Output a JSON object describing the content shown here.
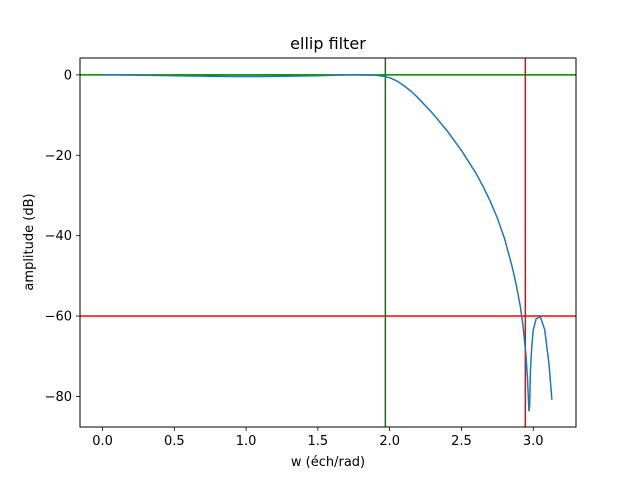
{
  "chart_data": {
    "type": "line",
    "title": "ellip filter",
    "xlabel": "w (éch/rad)",
    "ylabel": "amplitude (dB)",
    "xlim": [
      -0.157,
      3.298
    ],
    "ylim": [
      -87.6,
      4.2
    ],
    "xticks": [
      0.0,
      0.5,
      1.0,
      1.5,
      2.0,
      2.5,
      3.0
    ],
    "xtick_labels": [
      "0.0",
      "0.5",
      "1.0",
      "1.5",
      "2.0",
      "2.5",
      "3.0"
    ],
    "yticks": [
      0,
      -20,
      -40,
      -60,
      -80
    ],
    "ytick_labels": [
      "0",
      "−20",
      "−40",
      "−60",
      "−80"
    ],
    "grid": false,
    "series": [
      {
        "color": "#1f77b4",
        "x": [
          0.0,
          0.1,
          0.3,
          0.5,
          0.7,
          0.9,
          1.1,
          1.3,
          1.5,
          1.7,
          1.8,
          1.9,
          1.95,
          2.0,
          2.05,
          2.1,
          2.15,
          2.2,
          2.3,
          2.4,
          2.5,
          2.6,
          2.65,
          2.7,
          2.75,
          2.8,
          2.85,
          2.88,
          2.91,
          2.93,
          2.95,
          2.96,
          2.97,
          2.975,
          2.98,
          2.99,
          3.0,
          3.02,
          3.05,
          3.08,
          3.11,
          3.13
        ],
        "y": [
          0.0,
          0.0,
          -0.1,
          -0.2,
          -0.3,
          -0.4,
          -0.4,
          -0.3,
          -0.2,
          0.0,
          0.0,
          -0.1,
          -0.3,
          -0.7,
          -1.5,
          -2.7,
          -4.1,
          -5.8,
          -9.6,
          -13.9,
          -18.8,
          -24.4,
          -27.7,
          -31.4,
          -35.6,
          -40.7,
          -47.3,
          -51.9,
          -57.6,
          -62.7,
          -70.0,
          -75.5,
          -83.6,
          -82.5,
          -74.0,
          -67.5,
          -63.5,
          -60.7,
          -60.2,
          -63.4,
          -72.0,
          -80.8
        ]
      }
    ],
    "hlines": [
      {
        "y": 0,
        "color": "#008000"
      },
      {
        "y": -60,
        "color": "#ff0000"
      }
    ],
    "vlines": [
      {
        "x": 1.97,
        "color": "#008000"
      },
      {
        "x": 2.945,
        "color": "#ff0000"
      }
    ]
  }
}
